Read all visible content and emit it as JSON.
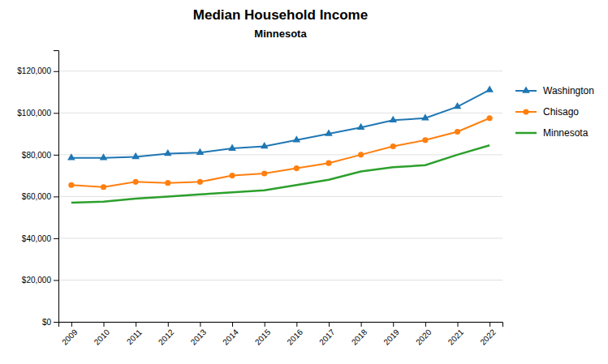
{
  "chart_data": {
    "type": "line",
    "title": "Median Household Income",
    "subtitle": "Minnesota",
    "x": [
      2009,
      2010,
      2011,
      2012,
      2013,
      2014,
      2015,
      2016,
      2017,
      2018,
      2019,
      2020,
      2021,
      2022
    ],
    "series": [
      {
        "name": "Washington",
        "marker": "triangle",
        "values": [
          78500,
          78500,
          79000,
          80500,
          81000,
          83000,
          84000,
          87000,
          90000,
          93000,
          96500,
          97500,
          103000,
          111000
        ]
      },
      {
        "name": "Chisago",
        "marker": "circle",
        "values": [
          65500,
          64500,
          67000,
          66500,
          67000,
          70000,
          71000,
          73500,
          76000,
          80000,
          84000,
          87000,
          91000,
          97500
        ]
      },
      {
        "name": "Minnesota",
        "values": [
          57000,
          57500,
          59000,
          60000,
          61000,
          62000,
          63000,
          65500,
          68000,
          72000,
          74000,
          75000,
          80000,
          84500
        ]
      }
    ],
    "xlim": [
      2008.6,
      2022.4
    ],
    "xticks": [
      2009,
      2010,
      2011,
      2012,
      2013,
      2014,
      2015,
      2016,
      2017,
      2018,
      2019,
      2020,
      2021,
      2022
    ],
    "ylim": [
      0,
      130000
    ],
    "yticks": [
      {
        "value": 0,
        "label": "$0"
      },
      {
        "value": 20000,
        "label": "$20,000"
      },
      {
        "value": 40000,
        "label": "$40,000"
      },
      {
        "value": 60000,
        "label": "$60,000"
      },
      {
        "value": 80000,
        "label": "$80,000"
      },
      {
        "value": 100000,
        "label": "$100,000"
      },
      {
        "value": 120000,
        "label": "$120,000"
      }
    ],
    "grid": true,
    "legend": "right"
  }
}
